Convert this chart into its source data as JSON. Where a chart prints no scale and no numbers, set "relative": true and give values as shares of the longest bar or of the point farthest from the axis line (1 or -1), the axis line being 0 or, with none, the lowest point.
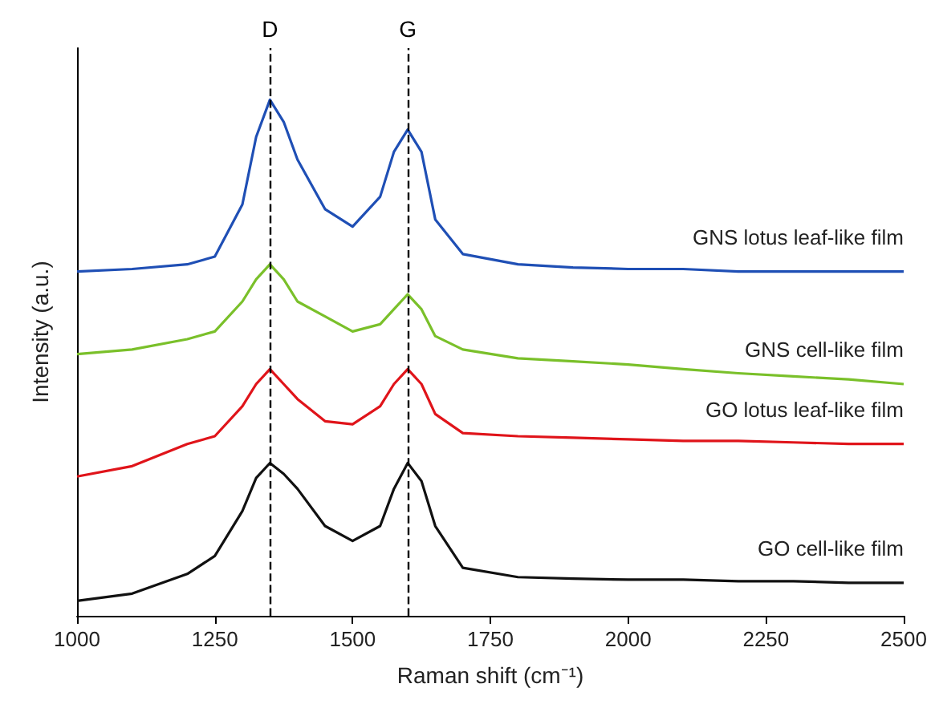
{
  "chart_data": {
    "type": "line",
    "relative": true,
    "xlabel": "Raman shift (cm⁻¹)",
    "ylabel": "Intensity (a.u.)",
    "x": [
      1000,
      1100,
      1200,
      1250,
      1300,
      1325,
      1350,
      1375,
      1400,
      1450,
      1500,
      1550,
      1575,
      1600,
      1625,
      1650,
      1700,
      1800,
      1900,
      2000,
      2100,
      2200,
      2300,
      2400,
      2500
    ],
    "xlim": [
      1000,
      2500
    ],
    "xticks": [
      1000,
      1250,
      1500,
      1750,
      2000,
      2250,
      2500
    ],
    "grid": false,
    "legend": false,
    "marker": "none",
    "line_style": "solid",
    "series": [
      {
        "name": "GNS lotus leaf-like film",
        "color": "#1f4fb5",
        "values": [
          0.667,
          0.672,
          0.681,
          0.696,
          0.797,
          0.928,
          1,
          0.957,
          0.884,
          0.788,
          0.754,
          0.812,
          0.899,
          0.942,
          0.899,
          0.768,
          0.701,
          0.681,
          0.675,
          0.672,
          0.672,
          0.667,
          0.667,
          0.667,
          0.667
        ]
      },
      {
        "name": "GNS cell-like film",
        "color": "#7ac02a",
        "values": [
          0.507,
          0.516,
          0.536,
          0.551,
          0.609,
          0.652,
          0.681,
          0.652,
          0.609,
          0.58,
          0.551,
          0.565,
          0.594,
          0.623,
          0.594,
          0.542,
          0.516,
          0.499,
          0.493,
          0.487,
          0.478,
          0.47,
          0.464,
          0.458,
          0.449
        ]
      },
      {
        "name": "GO lotus leaf-like film",
        "color": "#e0141a",
        "values": [
          0.27,
          0.29,
          0.333,
          0.348,
          0.406,
          0.449,
          0.478,
          0.449,
          0.42,
          0.377,
          0.371,
          0.406,
          0.449,
          0.478,
          0.449,
          0.391,
          0.354,
          0.348,
          0.345,
          0.342,
          0.339,
          0.339,
          0.336,
          0.333,
          0.333
        ]
      },
      {
        "name": "GO cell-like film",
        "color": "#111111",
        "values": [
          0.029,
          0.043,
          0.081,
          0.116,
          0.203,
          0.267,
          0.296,
          0.275,
          0.246,
          0.174,
          0.145,
          0.174,
          0.246,
          0.296,
          0.261,
          0.174,
          0.093,
          0.075,
          0.072,
          0.07,
          0.07,
          0.067,
          0.067,
          0.064,
          0.064
        ]
      }
    ],
    "ref_lines": [
      {
        "axis": "x",
        "value": 1350,
        "label": "D",
        "color": "#000000",
        "line_style": "dashed"
      },
      {
        "axis": "x",
        "value": 1600,
        "label": "G",
        "color": "#000000",
        "line_style": "dashed"
      }
    ]
  }
}
